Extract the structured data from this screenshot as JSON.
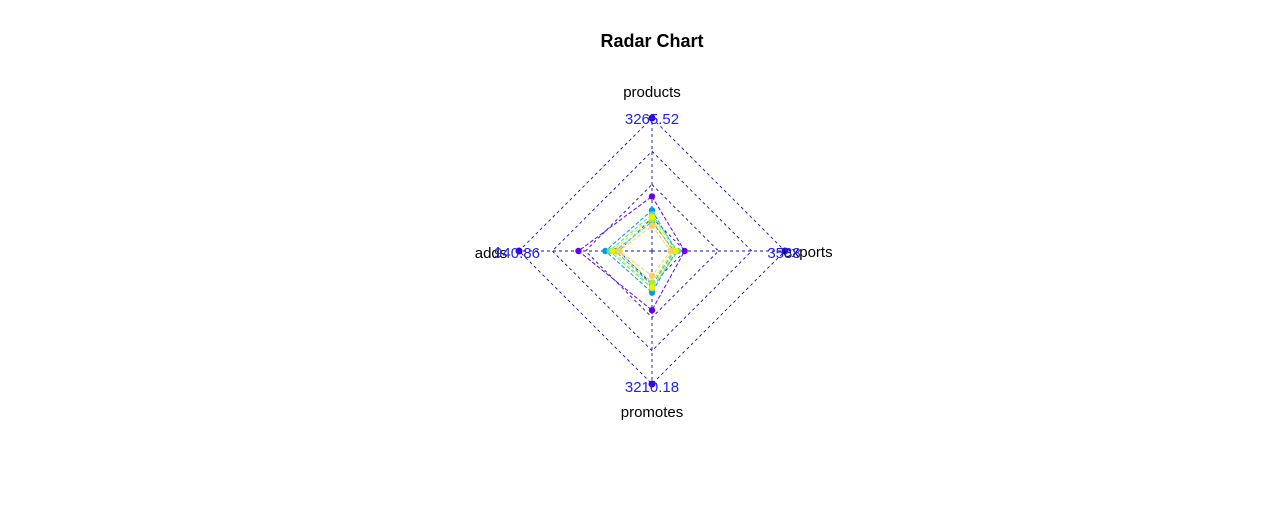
{
  "chart_data": {
    "type": "radar",
    "title": "Radar Chart",
    "axes": [
      "products",
      "exports",
      "promotes",
      "adds"
    ],
    "axis_max_labels": [
      "3265.52",
      "3588",
      "3210.18",
      "940.86"
    ],
    "axis_max": [
      3265.52,
      3588,
      3210.18,
      940.86
    ],
    "grid_levels": 4,
    "series": [
      {
        "color": "#6600ee",
        "values": [
          1340,
          880,
          1430,
          520
        ]
      },
      {
        "color": "#0099ee",
        "values": [
          1000,
          650,
          1000,
          330
        ]
      },
      {
        "color": "#22bbdd",
        "values": [
          720,
          600,
          820,
          260
        ]
      },
      {
        "color": "#55ddaa",
        "values": [
          900,
          700,
          900,
          300
        ]
      },
      {
        "color": "#aaee33",
        "values": [
          780,
          560,
          760,
          240
        ]
      },
      {
        "color": "#eeee00",
        "values": [
          840,
          640,
          880,
          280
        ]
      },
      {
        "color": "#ffcc66",
        "values": [
          620,
          500,
          600,
          230
        ]
      }
    ]
  }
}
